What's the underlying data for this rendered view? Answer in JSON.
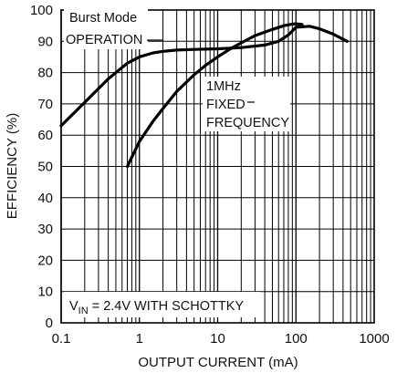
{
  "chart_data": {
    "type": "line",
    "xscale": "log",
    "xlim": [
      0.1,
      1000
    ],
    "ylim": [
      0,
      100
    ],
    "xlabel": "OUTPUT CURRENT (mA)",
    "ylabel": "EFFICIENCY (%)",
    "xticks": [
      "0.1",
      "1",
      "10",
      "100",
      "1000"
    ],
    "yticks": [
      "0",
      "10",
      "20",
      "30",
      "40",
      "50",
      "60",
      "70",
      "80",
      "90",
      "100"
    ],
    "grid": true,
    "series": [
      {
        "name": "Burst Mode OPERATION",
        "x": [
          0.1,
          0.2,
          0.4,
          0.7,
          1,
          1.5,
          2,
          3,
          5,
          10,
          20,
          40,
          60,
          80,
          100,
          150,
          200,
          300,
          450
        ],
        "y": [
          63,
          70.5,
          78,
          83,
          85,
          86.3,
          86.8,
          87.2,
          87.4,
          87.6,
          88,
          88.8,
          90,
          92,
          94.5,
          94.8,
          94,
          92.3,
          90
        ]
      },
      {
        "name": "1MHz FIXED FREQUENCY",
        "x": [
          0.7,
          1,
          1.5,
          2,
          3,
          5,
          7,
          10,
          15,
          20,
          30,
          50,
          70,
          90,
          100,
          120
        ],
        "y": [
          50,
          58,
          64.5,
          68.5,
          74,
          79.3,
          82.3,
          85,
          87.8,
          89.5,
          91.8,
          93.8,
          95,
          95.5,
          95.6,
          95.4
        ]
      }
    ],
    "annotations": {
      "burst_line1": "Burst Mode",
      "burst_line2": "OPERATION",
      "fixed_line1": "1MHz",
      "fixed_line2": "FIXED",
      "fixed_line3": "FREQUENCY",
      "condition_v": "V",
      "condition_sub": "IN",
      "condition_rest": " = 2.4V WITH SCHOTTKY"
    }
  }
}
